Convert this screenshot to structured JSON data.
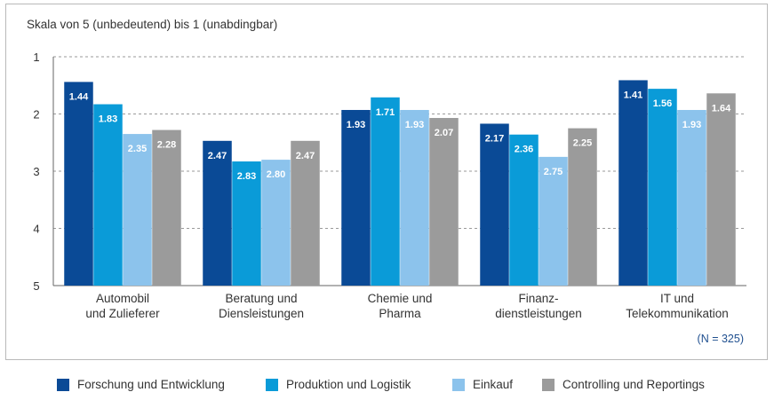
{
  "chart_data": {
    "type": "bar",
    "subtitle": "Skala von 5 (unbedeutend) bis 1 (unabdingbar)",
    "note": "(N = 325)",
    "ylim": [
      1,
      5
    ],
    "y_inverted": true,
    "yticks": [
      "1",
      "2",
      "3",
      "4",
      "5"
    ],
    "grid": true,
    "legend_position": "bottom",
    "categories": [
      [
        "Automobil",
        "und Zulieferer"
      ],
      [
        "Beratung und",
        "Diensleistungen"
      ],
      [
        "Chemie und",
        "Pharma"
      ],
      [
        "Finanz-",
        "dienstleistungen"
      ],
      [
        "IT und",
        "Telekommunikation"
      ]
    ],
    "series": [
      {
        "name": "Forschung und Entwicklung",
        "color": "#0a4a96",
        "values": [
          1.44,
          2.47,
          1.93,
          2.17,
          1.41
        ],
        "labels": [
          "1.44",
          "2.47",
          "1.93",
          "2.17",
          "1.41"
        ]
      },
      {
        "name": "Produktion und Logistik",
        "color": "#0a9bd8",
        "values": [
          1.83,
          2.83,
          1.71,
          2.36,
          1.56
        ],
        "labels": [
          "1.83",
          "2.83",
          "1.71",
          "2.36",
          "1.56"
        ]
      },
      {
        "name": "Einkauf",
        "color": "#8cc3ec",
        "values": [
          2.35,
          2.8,
          1.93,
          2.75,
          1.93
        ],
        "labels": [
          "2.35",
          "2.80",
          "1.93",
          "2.75",
          "1.93"
        ]
      },
      {
        "name": "Controlling und Reportings",
        "color": "#9b9b9b",
        "values": [
          2.28,
          2.47,
          2.07,
          2.25,
          1.64
        ],
        "labels": [
          "2.28",
          "2.47",
          "2.07",
          "2.25",
          "1.64"
        ]
      }
    ]
  }
}
